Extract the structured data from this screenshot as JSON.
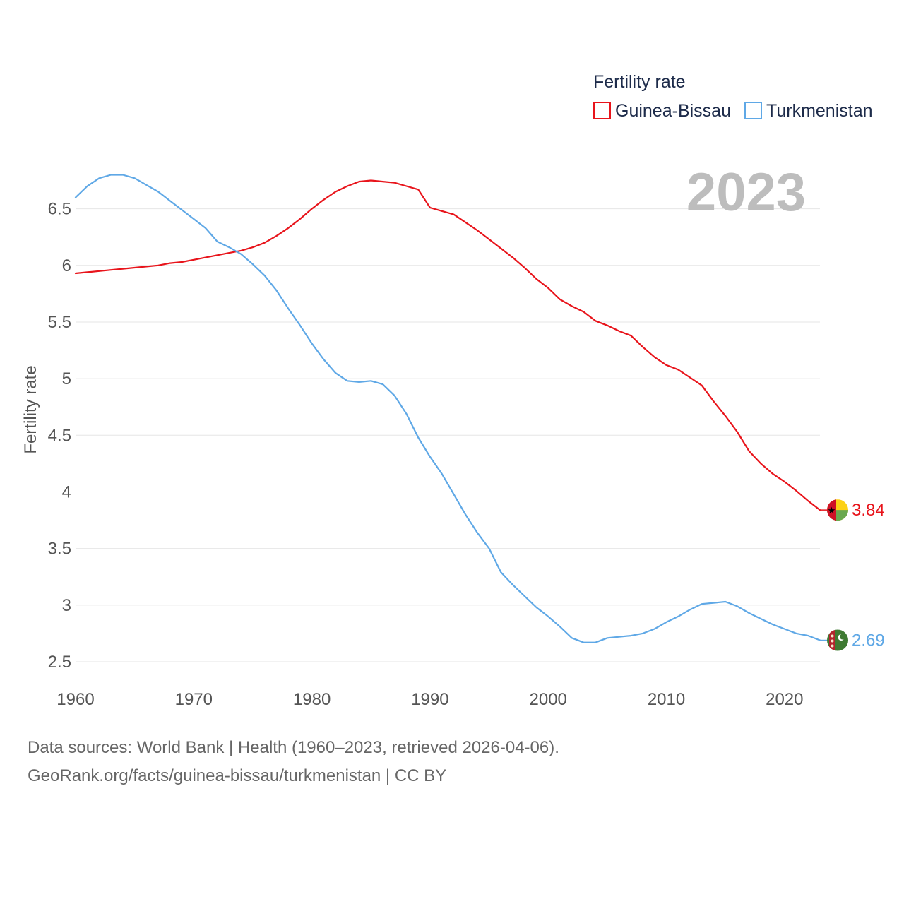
{
  "chart_data": {
    "type": "line",
    "title": "Fertility rate",
    "ylabel": "Fertility rate",
    "xlabel": "",
    "year_label": "2023",
    "xlim": [
      1960,
      2023
    ],
    "ylim": [
      2.4,
      6.9
    ],
    "x_ticks": [
      1960,
      1970,
      1980,
      1990,
      2000,
      2010,
      2020
    ],
    "y_ticks": [
      2.5,
      3,
      3.5,
      4,
      4.5,
      5,
      5.5,
      6,
      6.5
    ],
    "y_tick_labels": [
      "2.5",
      "3",
      "3.5",
      "4",
      "4.5",
      "5",
      "5.5",
      "6",
      "6.5"
    ],
    "legend_title": "Fertility rate",
    "legend_position": "top-right",
    "x": [
      1960,
      1961,
      1962,
      1963,
      1964,
      1965,
      1966,
      1967,
      1968,
      1969,
      1970,
      1971,
      1972,
      1973,
      1974,
      1975,
      1976,
      1977,
      1978,
      1979,
      1980,
      1981,
      1982,
      1983,
      1984,
      1985,
      1986,
      1987,
      1988,
      1989,
      1990,
      1991,
      1992,
      1993,
      1994,
      1995,
      1996,
      1997,
      1998,
      1999,
      2000,
      2001,
      2002,
      2003,
      2004,
      2005,
      2006,
      2007,
      2008,
      2009,
      2010,
      2011,
      2012,
      2013,
      2014,
      2015,
      2016,
      2017,
      2018,
      2019,
      2020,
      2021,
      2022,
      2023
    ],
    "series": [
      {
        "name": "Guinea-Bissau",
        "color": "#e8141b",
        "end_label": "3.84",
        "flag": "guinea-bissau-flag-icon",
        "values": [
          5.93,
          5.94,
          5.95,
          5.96,
          5.97,
          5.98,
          5.99,
          6.0,
          6.02,
          6.03,
          6.05,
          6.07,
          6.09,
          6.11,
          6.13,
          6.16,
          6.2,
          6.26,
          6.33,
          6.41,
          6.5,
          6.58,
          6.65,
          6.7,
          6.74,
          6.75,
          6.74,
          6.73,
          6.7,
          6.67,
          6.51,
          6.48,
          6.45,
          6.38,
          6.31,
          6.23,
          6.15,
          6.07,
          5.98,
          5.88,
          5.8,
          5.7,
          5.64,
          5.59,
          5.51,
          5.47,
          5.42,
          5.38,
          5.28,
          5.19,
          5.12,
          5.08,
          5.01,
          4.94,
          4.8,
          4.67,
          4.53,
          4.36,
          4.25,
          4.16,
          4.09,
          4.01,
          3.92,
          3.84
        ]
      },
      {
        "name": "Turkmenistan",
        "color": "#5fa8e6",
        "end_label": "2.69",
        "flag": "turkmenistan-flag-icon",
        "values": [
          6.6,
          6.7,
          6.77,
          6.8,
          6.8,
          6.77,
          6.71,
          6.65,
          6.57,
          6.49,
          6.41,
          6.33,
          6.21,
          6.16,
          6.1,
          6.01,
          5.91,
          5.78,
          5.62,
          5.47,
          5.31,
          5.17,
          5.05,
          4.98,
          4.97,
          4.98,
          4.95,
          4.85,
          4.69,
          4.48,
          4.31,
          4.16,
          3.98,
          3.8,
          3.64,
          3.5,
          3.29,
          3.18,
          3.08,
          2.98,
          2.9,
          2.81,
          2.71,
          2.67,
          2.67,
          2.71,
          2.72,
          2.73,
          2.75,
          2.79,
          2.85,
          2.9,
          2.96,
          3.01,
          3.02,
          3.03,
          2.99,
          2.93,
          2.88,
          2.83,
          2.79,
          2.75,
          2.73,
          2.69
        ]
      }
    ]
  },
  "footer": {
    "line1": "Data sources: World Bank | Health (1960–2023, retrieved 2026-04-06).",
    "line2": "GeoRank.org/facts/guinea-bissau/turkmenistan | CC BY"
  }
}
